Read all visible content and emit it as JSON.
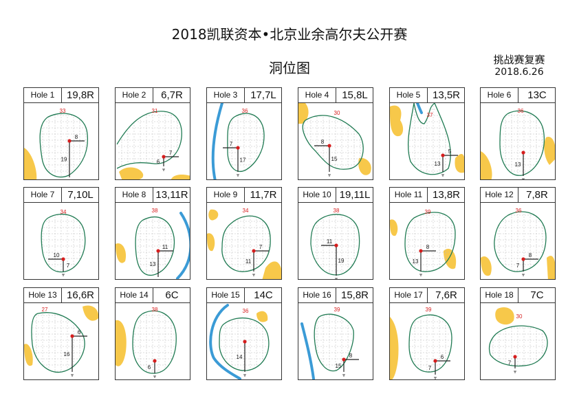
{
  "header": {
    "title": "2018凯联资本•北京业余高尔夫公开赛",
    "subtitle": "洞位图",
    "round": "挑战赛复赛",
    "date": "2018.6.26"
  },
  "colors": {
    "green_outline": "#1f7a52",
    "bunker": "#f7c84a",
    "water": "#3b9bd6",
    "pin": "#d61e1e",
    "depth_text": "#d61e1e"
  },
  "holes": [
    {
      "label": "Hole 1",
      "pin": "19,8R",
      "depth": "33",
      "front": "19",
      "side": "8"
    },
    {
      "label": "Hole 2",
      "pin": "6,7R",
      "depth": "31",
      "front": "6",
      "side": "7"
    },
    {
      "label": "Hole 3",
      "pin": "17,7L",
      "depth": "36",
      "front": "17",
      "side": "7"
    },
    {
      "label": "Hole 4",
      "pin": "15,8L",
      "depth": "30",
      "front": "15",
      "side": "8"
    },
    {
      "label": "Hole 5",
      "pin": "13,5R",
      "depth": "37",
      "front": "13",
      "side": "5"
    },
    {
      "label": "Hole 6",
      "pin": "13C",
      "depth": "36",
      "front": "13",
      "side": ""
    },
    {
      "label": "Hole 7",
      "pin": "7,10L",
      "depth": "34",
      "front": "7",
      "side": "10"
    },
    {
      "label": "Hole 8",
      "pin": "13,11R",
      "depth": "38",
      "front": "13",
      "side": "11"
    },
    {
      "label": "Hole 9",
      "pin": "11,7R",
      "depth": "34",
      "front": "11",
      "side": "7"
    },
    {
      "label": "Hole 10",
      "pin": "19,11L",
      "depth": "38",
      "front": "19",
      "side": "11"
    },
    {
      "label": "Hole 11",
      "pin": "13,8R",
      "depth": "39",
      "front": "13",
      "side": "8"
    },
    {
      "label": "Hole 12",
      "pin": "7,8R",
      "depth": "36",
      "front": "7",
      "side": "8"
    },
    {
      "label": "Hole 13",
      "pin": "16,6R",
      "depth": "27",
      "front": "16",
      "side": "6"
    },
    {
      "label": "Hole 14",
      "pin": "6C",
      "depth": "38",
      "front": "6",
      "side": ""
    },
    {
      "label": "Hole 15",
      "pin": "14C",
      "depth": "36",
      "front": "14",
      "side": ""
    },
    {
      "label": "Hole 16",
      "pin": "15,8R",
      "depth": "39",
      "front": "15",
      "side": "8"
    },
    {
      "label": "Hole 17",
      "pin": "7,6R",
      "depth": "39",
      "front": "7",
      "side": "6"
    },
    {
      "label": "Hole 18",
      "pin": "7C",
      "depth": "30",
      "front": "7",
      "side": ""
    }
  ]
}
